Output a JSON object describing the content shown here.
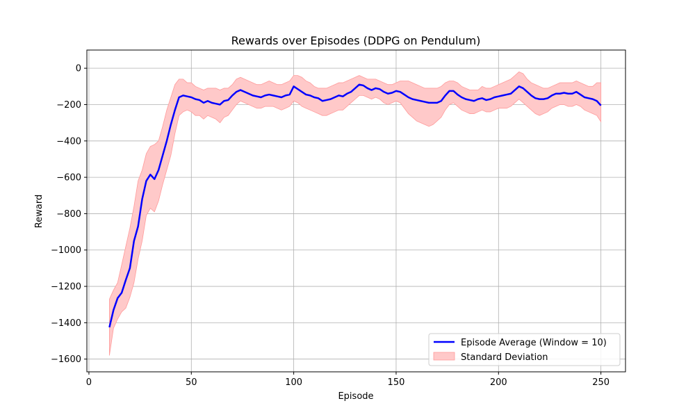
{
  "chart_data": {
    "type": "line",
    "title": "Rewards over Episodes (DDPG on Pendulum)",
    "xlabel": "Episode",
    "ylabel": "Reward",
    "xlim": [
      -1,
      262
    ],
    "ylim": [
      -1670,
      100
    ],
    "xticks": [
      0,
      50,
      100,
      150,
      200,
      250
    ],
    "yticks": [
      0,
      -200,
      -400,
      -600,
      -800,
      -1000,
      -1200,
      -1400,
      -1600
    ],
    "grid": true,
    "legend_position": "lower-right",
    "colors": {
      "line": "#0000ff",
      "band_fill": "#ffc9c9",
      "band_edge": "#ff9a9a",
      "grid": "#b0b0b0"
    },
    "series": [
      {
        "name": "Episode Average (Window = 10)",
        "x": [
          10,
          12,
          14,
          16,
          18,
          20,
          22,
          24,
          26,
          28,
          30,
          32,
          34,
          36,
          38,
          40,
          42,
          44,
          46,
          48,
          50,
          52,
          54,
          56,
          58,
          60,
          62,
          64,
          66,
          68,
          70,
          72,
          74,
          76,
          78,
          80,
          82,
          84,
          86,
          88,
          90,
          92,
          94,
          96,
          98,
          100,
          102,
          104,
          106,
          108,
          110,
          112,
          114,
          116,
          118,
          120,
          122,
          124,
          126,
          128,
          130,
          132,
          134,
          136,
          138,
          140,
          142,
          144,
          146,
          148,
          150,
          152,
          154,
          156,
          158,
          160,
          162,
          164,
          166,
          168,
          170,
          172,
          174,
          176,
          178,
          180,
          182,
          184,
          186,
          188,
          190,
          192,
          194,
          196,
          198,
          200,
          202,
          204,
          206,
          208,
          210,
          212,
          214,
          216,
          218,
          220,
          222,
          224,
          226,
          228,
          230,
          232,
          234,
          236,
          238,
          240,
          242,
          244,
          246,
          248,
          250
        ],
        "y": [
          -1425,
          -1330,
          -1265,
          -1235,
          -1165,
          -1100,
          -950,
          -870,
          -720,
          -620,
          -585,
          -610,
          -560,
          -480,
          -400,
          -310,
          -230,
          -160,
          -150,
          -155,
          -160,
          -170,
          -175,
          -190,
          -180,
          -190,
          -195,
          -200,
          -180,
          -175,
          -150,
          -130,
          -120,
          -130,
          -140,
          -150,
          -155,
          -160,
          -150,
          -145,
          -150,
          -155,
          -160,
          -150,
          -145,
          -100,
          -115,
          -130,
          -145,
          -150,
          -160,
          -165,
          -180,
          -175,
          -170,
          -160,
          -150,
          -155,
          -140,
          -130,
          -110,
          -90,
          -95,
          -110,
          -120,
          -110,
          -115,
          -130,
          -140,
          -135,
          -125,
          -130,
          -145,
          -160,
          -170,
          -175,
          -180,
          -185,
          -190,
          -190,
          -190,
          -180,
          -150,
          -125,
          -125,
          -145,
          -160,
          -170,
          -175,
          -180,
          -170,
          -165,
          -175,
          -170,
          -160,
          -155,
          -150,
          -145,
          -140,
          -120,
          -100,
          -110,
          -130,
          -150,
          -165,
          -170,
          -170,
          -165,
          -150,
          -140,
          -140,
          -135,
          -140,
          -140,
          -130,
          -145,
          -160,
          -165,
          -170,
          -180,
          -205
        ]
      },
      {
        "name": "Standard Deviation",
        "x": [
          10,
          12,
          14,
          16,
          18,
          20,
          22,
          24,
          26,
          28,
          30,
          32,
          34,
          36,
          38,
          40,
          42,
          44,
          46,
          48,
          50,
          52,
          54,
          56,
          58,
          60,
          62,
          64,
          66,
          68,
          70,
          72,
          74,
          76,
          78,
          80,
          82,
          84,
          86,
          88,
          90,
          92,
          94,
          96,
          98,
          100,
          102,
          104,
          106,
          108,
          110,
          112,
          114,
          116,
          118,
          120,
          122,
          124,
          126,
          128,
          130,
          132,
          134,
          136,
          138,
          140,
          142,
          144,
          146,
          148,
          150,
          152,
          154,
          156,
          158,
          160,
          162,
          164,
          166,
          168,
          170,
          172,
          174,
          176,
          178,
          180,
          182,
          184,
          186,
          188,
          190,
          192,
          194,
          196,
          198,
          200,
          202,
          204,
          206,
          208,
          210,
          212,
          214,
          216,
          218,
          220,
          222,
          224,
          226,
          228,
          230,
          232,
          234,
          236,
          238,
          240,
          242,
          244,
          246,
          248,
          250
        ],
        "upper": [
          -1270,
          -1220,
          -1180,
          -1080,
          -980,
          -880,
          -760,
          -620,
          -560,
          -470,
          -430,
          -420,
          -400,
          -320,
          -230,
          -160,
          -90,
          -60,
          -60,
          -80,
          -80,
          -100,
          -110,
          -120,
          -110,
          -110,
          -110,
          -120,
          -110,
          -110,
          -90,
          -60,
          -50,
          -60,
          -70,
          -80,
          -90,
          -90,
          -80,
          -70,
          -80,
          -90,
          -90,
          -80,
          -70,
          -40,
          -40,
          -50,
          -70,
          -80,
          -100,
          -110,
          -110,
          -110,
          -100,
          -90,
          -80,
          -80,
          -70,
          -60,
          -50,
          -40,
          -50,
          -60,
          -60,
          -60,
          -70,
          -80,
          -90,
          -90,
          -80,
          -70,
          -70,
          -70,
          -80,
          -90,
          -100,
          -110,
          -110,
          -110,
          -110,
          -100,
          -80,
          -70,
          -70,
          -80,
          -100,
          -110,
          -120,
          -120,
          -120,
          -100,
          -110,
          -110,
          -100,
          -90,
          -80,
          -70,
          -60,
          -40,
          -20,
          -30,
          -60,
          -80,
          -90,
          -100,
          -110,
          -110,
          -100,
          -90,
          -80,
          -80,
          -80,
          -80,
          -70,
          -80,
          -90,
          -100,
          -100,
          -80,
          -80
        ],
        "lower": [
          -1580,
          -1430,
          -1380,
          -1340,
          -1320,
          -1260,
          -1180,
          -1050,
          -950,
          -810,
          -770,
          -790,
          -730,
          -640,
          -560,
          -480,
          -360,
          -260,
          -240,
          -230,
          -240,
          -260,
          -260,
          -280,
          -260,
          -270,
          -280,
          -300,
          -270,
          -260,
          -230,
          -200,
          -180,
          -190,
          -200,
          -210,
          -220,
          -220,
          -210,
          -210,
          -210,
          -220,
          -230,
          -220,
          -210,
          -180,
          -190,
          -210,
          -220,
          -230,
          -240,
          -250,
          -260,
          -260,
          -250,
          -240,
          -230,
          -230,
          -210,
          -190,
          -170,
          -150,
          -150,
          -160,
          -170,
          -160,
          -170,
          -190,
          -200,
          -190,
          -180,
          -190,
          -220,
          -250,
          -270,
          -290,
          -300,
          -310,
          -320,
          -310,
          -290,
          -270,
          -230,
          -200,
          -190,
          -210,
          -230,
          -240,
          -250,
          -250,
          -240,
          -230,
          -240,
          -240,
          -230,
          -220,
          -220,
          -220,
          -210,
          -190,
          -170,
          -190,
          -210,
          -230,
          -250,
          -260,
          -250,
          -240,
          -220,
          -210,
          -200,
          -200,
          -210,
          -210,
          -200,
          -210,
          -230,
          -240,
          -250,
          -260,
          -295
        ]
      }
    ]
  }
}
